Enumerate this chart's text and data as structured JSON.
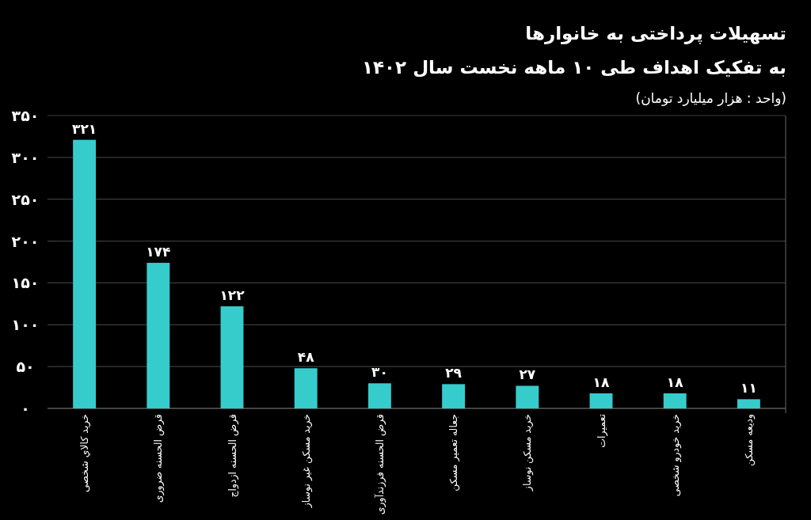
{
  "chart_data": {
    "type": "bar",
    "title": "تسهیلات پرداختی به خانوارها",
    "subtitle": "به تفکیک اهداف طی ۱۰ ماهه نخست سال ۱۴۰۲",
    "annotations": [
      "(واحد : هزار میلیارد تومان)"
    ],
    "categories": [
      "خرید کالاي شخصی",
      "قرض الحسنه ضروری",
      "قرض الحسنه ازدواج",
      "خرید مسکن غیر نوساز",
      "قرض الحسنه فرزندآوری",
      "جعاله تعمیر مسکن",
      "خرید مسکن نوساز",
      "تعمیرات",
      "خرید خودرو شخصی",
      "ودیعه مسکن"
    ],
    "values": [
      321,
      174,
      122,
      48,
      30,
      29,
      27,
      18,
      18,
      11
    ],
    "value_labels": [
      "۳۲۱",
      "۱۷۴",
      "۱۲۲",
      "۴۸",
      "۳۰",
      "۲۹",
      "۲۷",
      "۱۸",
      "۱۸",
      "۱۱"
    ],
    "color": "#36cccc",
    "ylim": [
      0,
      350
    ],
    "yticks": [
      {
        "value": 0,
        "label": "۰"
      },
      {
        "value": 50,
        "label": "۵۰"
      },
      {
        "value": 100,
        "label": "۱۰۰"
      },
      {
        "value": 150,
        "label": "۱۵۰"
      },
      {
        "value": 200,
        "label": "۲۰۰"
      },
      {
        "value": 250,
        "label": "۲۵۰"
      },
      {
        "value": 300,
        "label": "۳۰۰"
      },
      {
        "value": 350,
        "label": "۳۵۰"
      }
    ],
    "grid": "y"
  }
}
